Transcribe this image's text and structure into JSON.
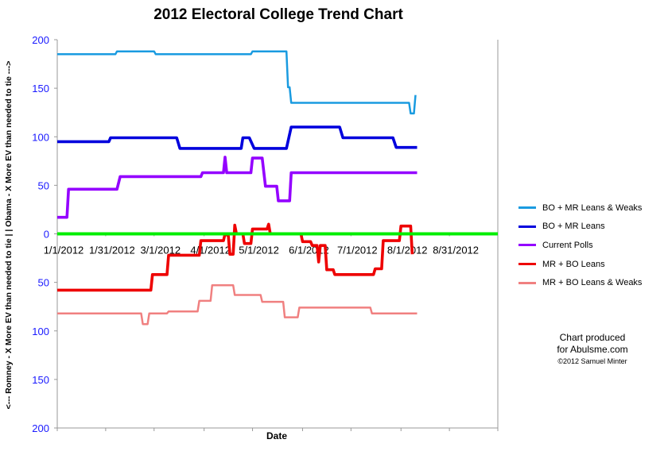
{
  "chart_data": {
    "type": "line",
    "title": "2012 Electoral College Trend Chart",
    "xlabel": "Date",
    "ylabel": "<--- Romney - X More EV than needed to tie | |  Obama - X More EV than needed to tie --->",
    "x_ticks": [
      "1/1/2012",
      "1/31/2012",
      "3/1/2012",
      "4/1/2012",
      "5/1/2012",
      "6/1/2012",
      "7/1/2012",
      "8/1/2012",
      "8/31/2012"
    ],
    "y_ticks": [
      "200",
      "150",
      "100",
      "50",
      "0",
      "50",
      "100",
      "150",
      "200"
    ],
    "ylim": [
      -200,
      200
    ],
    "x_range": [
      "2012-01-01",
      "2012-09-30"
    ],
    "grid": false,
    "legend_position": "right",
    "zero_line_color": "#00ee00",
    "series": [
      {
        "name": "BO + MR Leans & Weaks",
        "color": "#1a9be0",
        "points": [
          [
            "2012-01-01",
            185
          ],
          [
            "2012-02-06",
            185
          ],
          [
            "2012-02-07",
            188
          ],
          [
            "2012-03-01",
            188
          ],
          [
            "2012-03-02",
            185
          ],
          [
            "2012-04-30",
            185
          ],
          [
            "2012-05-01",
            188
          ],
          [
            "2012-05-22",
            188
          ],
          [
            "2012-05-23",
            151
          ],
          [
            "2012-05-24",
            151
          ],
          [
            "2012-05-25",
            135
          ],
          [
            "2012-08-06",
            135
          ],
          [
            "2012-08-07",
            124
          ],
          [
            "2012-08-09",
            124
          ],
          [
            "2012-08-10",
            143
          ]
        ]
      },
      {
        "name": "BO + MR Leans",
        "color": "#0000dd",
        "points": [
          [
            "2012-01-01",
            95
          ],
          [
            "2012-02-02",
            95
          ],
          [
            "2012-02-03",
            99
          ],
          [
            "2012-03-15",
            99
          ],
          [
            "2012-03-17",
            88
          ],
          [
            "2012-04-24",
            88
          ],
          [
            "2012-04-25",
            99
          ],
          [
            "2012-04-29",
            99
          ],
          [
            "2012-05-02",
            88
          ],
          [
            "2012-05-22",
            88
          ],
          [
            "2012-05-25",
            110
          ],
          [
            "2012-06-24",
            110
          ],
          [
            "2012-06-26",
            99
          ],
          [
            "2012-07-27",
            99
          ],
          [
            "2012-07-29",
            89
          ],
          [
            "2012-08-11",
            89
          ]
        ]
      },
      {
        "name": "Current Polls",
        "color": "#9400ff",
        "points": [
          [
            "2012-01-01",
            17
          ],
          [
            "2012-01-07",
            17
          ],
          [
            "2012-01-08",
            46
          ],
          [
            "2012-02-07",
            46
          ],
          [
            "2012-02-09",
            59
          ],
          [
            "2012-03-30",
            59
          ],
          [
            "2012-03-31",
            63
          ],
          [
            "2012-04-13",
            63
          ],
          [
            "2012-04-14",
            79
          ],
          [
            "2012-04-15",
            63
          ],
          [
            "2012-04-30",
            63
          ],
          [
            "2012-05-01",
            78
          ],
          [
            "2012-05-07",
            78
          ],
          [
            "2012-05-09",
            49
          ],
          [
            "2012-05-16",
            49
          ],
          [
            "2012-05-17",
            34
          ],
          [
            "2012-05-24",
            34
          ],
          [
            "2012-05-25",
            63
          ],
          [
            "2012-08-11",
            63
          ]
        ]
      },
      {
        "name": "MR + BO Leans",
        "color": "#ee0000",
        "points": [
          [
            "2012-01-01",
            -58
          ],
          [
            "2012-02-28",
            -58
          ],
          [
            "2012-02-29",
            -42
          ],
          [
            "2012-03-09",
            -42
          ],
          [
            "2012-03-10",
            -22
          ],
          [
            "2012-03-29",
            -22
          ],
          [
            "2012-03-30",
            -7
          ],
          [
            "2012-04-13",
            -7
          ],
          [
            "2012-04-14",
            0
          ],
          [
            "2012-04-16",
            -2
          ],
          [
            "2012-04-17",
            -21
          ],
          [
            "2012-04-19",
            -21
          ],
          [
            "2012-04-20",
            9
          ],
          [
            "2012-04-21",
            0
          ],
          [
            "2012-04-25",
            0
          ],
          [
            "2012-04-26",
            -10
          ],
          [
            "2012-04-30",
            -10
          ],
          [
            "2012-05-01",
            5
          ],
          [
            "2012-05-10",
            5
          ],
          [
            "2012-05-11",
            10
          ],
          [
            "2012-05-12",
            0
          ],
          [
            "2012-05-31",
            0
          ],
          [
            "2012-06-01",
            -8
          ],
          [
            "2012-06-06",
            -8
          ],
          [
            "2012-06-07",
            -12
          ],
          [
            "2012-06-10",
            -12
          ],
          [
            "2012-06-11",
            -29
          ],
          [
            "2012-06-12",
            -12
          ],
          [
            "2012-06-15",
            -12
          ],
          [
            "2012-06-16",
            -37
          ],
          [
            "2012-06-20",
            -37
          ],
          [
            "2012-06-21",
            -42
          ],
          [
            "2012-07-15",
            -42
          ],
          [
            "2012-07-16",
            -36
          ],
          [
            "2012-07-20",
            -36
          ],
          [
            "2012-07-21",
            -7
          ],
          [
            "2012-07-31",
            -7
          ],
          [
            "2012-08-01",
            8
          ],
          [
            "2012-08-07",
            8
          ],
          [
            "2012-08-08",
            -21
          ]
        ]
      },
      {
        "name": "MR + BO Leans & Weaks",
        "color": "#f08080",
        "points": [
          [
            "2012-01-01",
            -82
          ],
          [
            "2012-02-22",
            -82
          ],
          [
            "2012-02-23",
            -93
          ],
          [
            "2012-02-26",
            -93
          ],
          [
            "2012-02-27",
            -82
          ],
          [
            "2012-03-09",
            -82
          ],
          [
            "2012-03-10",
            -80
          ],
          [
            "2012-03-28",
            -80
          ],
          [
            "2012-03-29",
            -69
          ],
          [
            "2012-04-05",
            -69
          ],
          [
            "2012-04-06",
            -53
          ],
          [
            "2012-04-19",
            -53
          ],
          [
            "2012-04-20",
            -63
          ],
          [
            "2012-05-06",
            -63
          ],
          [
            "2012-05-07",
            -70
          ],
          [
            "2012-05-20",
            -70
          ],
          [
            "2012-05-21",
            -86
          ],
          [
            "2012-05-29",
            -86
          ],
          [
            "2012-05-30",
            -76
          ],
          [
            "2012-07-13",
            -76
          ],
          [
            "2012-07-14",
            -82
          ],
          [
            "2012-08-11",
            -82
          ]
        ]
      }
    ]
  },
  "legend": {
    "items": [
      {
        "label": "BO + MR Leans & Weaks",
        "color": "#1a9be0"
      },
      {
        "label": "BO + MR Leans",
        "color": "#0000dd"
      },
      {
        "label": "Current Polls",
        "color": "#9400ff"
      },
      {
        "label": "MR + BO Leans",
        "color": "#ee0000"
      },
      {
        "label": "MR + BO Leans & Weaks",
        "color": "#f08080"
      }
    ]
  },
  "credit": {
    "line1": "Chart produced",
    "line2": "for Abulsme.com",
    "line3": "©2012 Samuel Minter"
  }
}
